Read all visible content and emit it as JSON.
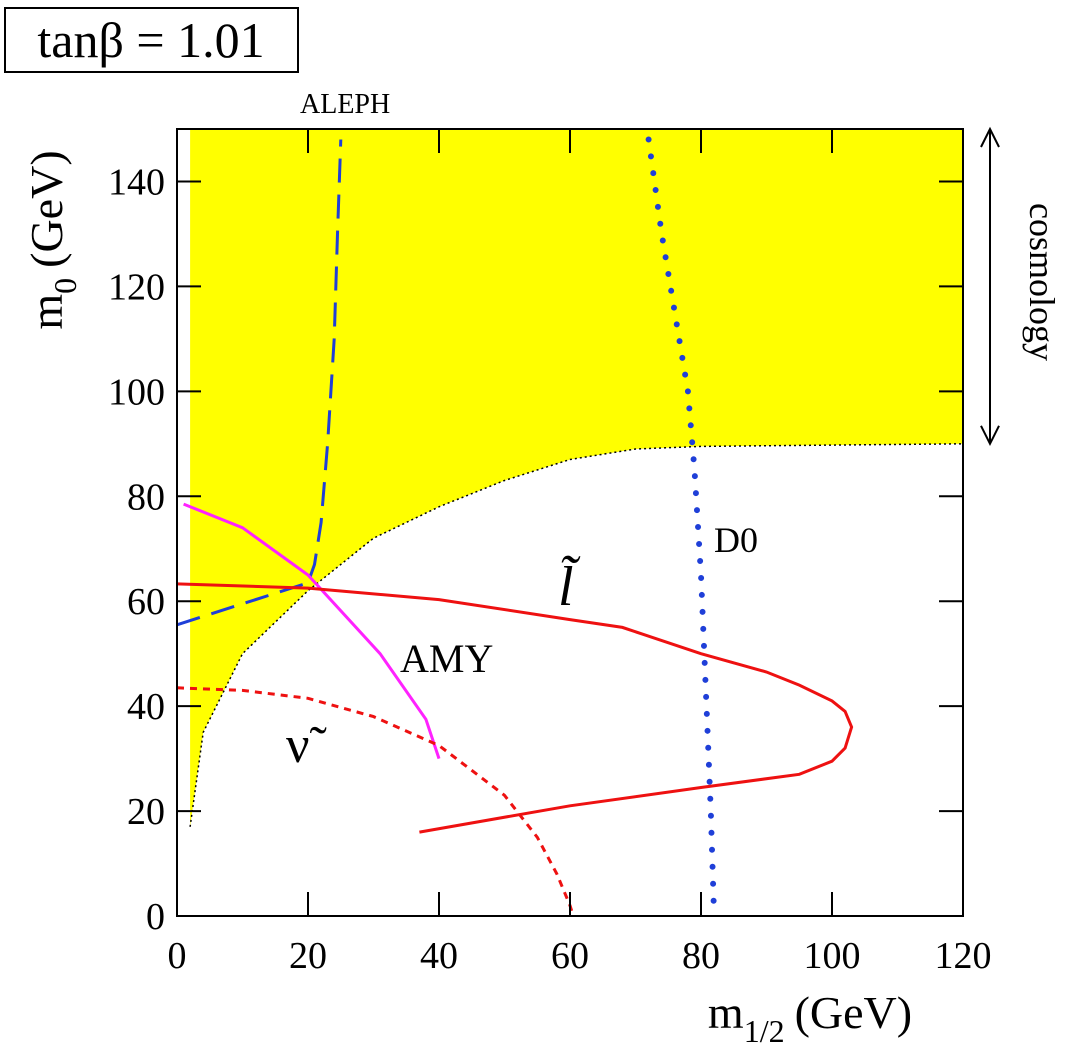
{
  "chart_data": {
    "type": "line",
    "title": "tanβ = 1.01",
    "xlabel": {
      "main": "m",
      "sub": "1/2",
      "unit": "(GeV)"
    },
    "ylabel": {
      "main": "m",
      "sub": "0",
      "unit": "(GeV)"
    },
    "xlim": [
      0,
      120
    ],
    "ylim": [
      0,
      150
    ],
    "xticks": [
      0,
      20,
      40,
      60,
      80,
      100,
      120
    ],
    "yticks": [
      0,
      20,
      40,
      60,
      80,
      100,
      120,
      140
    ],
    "annotation": {
      "text": "cosmology",
      "range": [
        90,
        150
      ]
    },
    "series": [
      {
        "kind": "region-above",
        "color": "#ffff00",
        "x": [
          2,
          4,
          10,
          20,
          30,
          40,
          50,
          60,
          70,
          80,
          120
        ],
        "values": [
          17,
          35,
          50,
          62,
          72,
          78,
          83,
          87,
          89,
          89.5,
          90
        ]
      },
      {
        "name": "ALEPH",
        "color": "#1f3fd8",
        "style": "dashed",
        "x": [
          0,
          20,
          21,
          22,
          23,
          24,
          24.5,
          25
        ],
        "values": [
          55.5,
          63.5,
          67,
          75,
          90,
          110,
          130,
          148
        ]
      },
      {
        "name": "D0",
        "color": "#1f3fd8",
        "style": "dotted",
        "x": [
          72,
          74,
          76,
          78,
          79,
          80,
          80.5,
          81,
          81.5,
          82
        ],
        "values": [
          148,
          130,
          115,
          100,
          85,
          65,
          50,
          35,
          20,
          0
        ]
      },
      {
        "name": "AMY",
        "color": "#ff22ff",
        "style": "solid",
        "x": [
          1,
          10,
          20,
          31,
          38,
          40
        ],
        "values": [
          78.5,
          74,
          65,
          50,
          37.5,
          30
        ]
      },
      {
        "name": "l̃",
        "color": "#ee1111",
        "style": "solid",
        "x": [
          0,
          20,
          40,
          60,
          68,
          80,
          90,
          95,
          100,
          102,
          103,
          102,
          100,
          95,
          80,
          60,
          37
        ],
        "values": [
          63.3,
          62.5,
          60.3,
          56.5,
          55,
          50,
          46.5,
          44,
          41,
          39,
          36,
          32,
          29.5,
          27,
          24.5,
          21,
          16
        ]
      },
      {
        "name": "ν̃",
        "color": "#ee1111",
        "style": "short-dashed",
        "x": [
          0,
          10,
          20,
          30,
          40,
          50,
          55,
          58,
          60,
          60.5
        ],
        "values": [
          43.5,
          43,
          41.5,
          38,
          32.5,
          23,
          15,
          8,
          2,
          0
        ]
      }
    ]
  }
}
